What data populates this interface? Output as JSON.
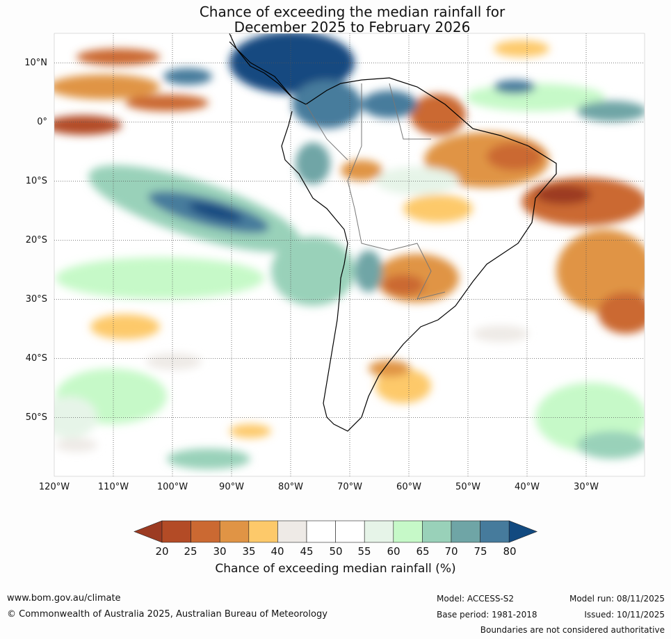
{
  "title": {
    "line1": "Chance of exceeding the median rainfall for",
    "line2": "December 2025 to February 2026"
  },
  "map": {
    "lat_labels": [
      "10°N",
      "0°",
      "10°S",
      "20°S",
      "30°S",
      "40°S",
      "50°S"
    ],
    "lon_labels": [
      "120°W",
      "110°W",
      "100°W",
      "90°W",
      "80°W",
      "70°W",
      "60°W",
      "50°W",
      "40°W",
      "30°W"
    ],
    "lon_range": [
      -120,
      -20
    ],
    "lat_range": [
      -60,
      15
    ]
  },
  "colorbar": {
    "label": "Chance of exceeding median rainfall (%)",
    "ticks": [
      "20",
      "25",
      "30",
      "35",
      "40",
      "45",
      "50",
      "55",
      "60",
      "65",
      "70",
      "75",
      "80"
    ],
    "colors": [
      "#9c3b22",
      "#b34b26",
      "#cb6932",
      "#e09445",
      "#fdc96a",
      "#eeeae6",
      "#ffffff",
      "#ffffff",
      "#e6f4e8",
      "#c6f9c8",
      "#99d1b9",
      "#6fa5a6",
      "#467b9c",
      "#124a80"
    ]
  },
  "footer": {
    "website": "www.bom.gov.au/climate",
    "copyright": "© Commonwealth of Australia 2025, Australian Bureau of Meteorology",
    "model": "Model: ACCESS-S2",
    "base_period": "Base period: 1981-2018",
    "model_run": "Model run: 08/11/2025",
    "issued": "Issued: 10/11/2025",
    "disclaimer": "Boundaries are not considered authoritative"
  }
}
